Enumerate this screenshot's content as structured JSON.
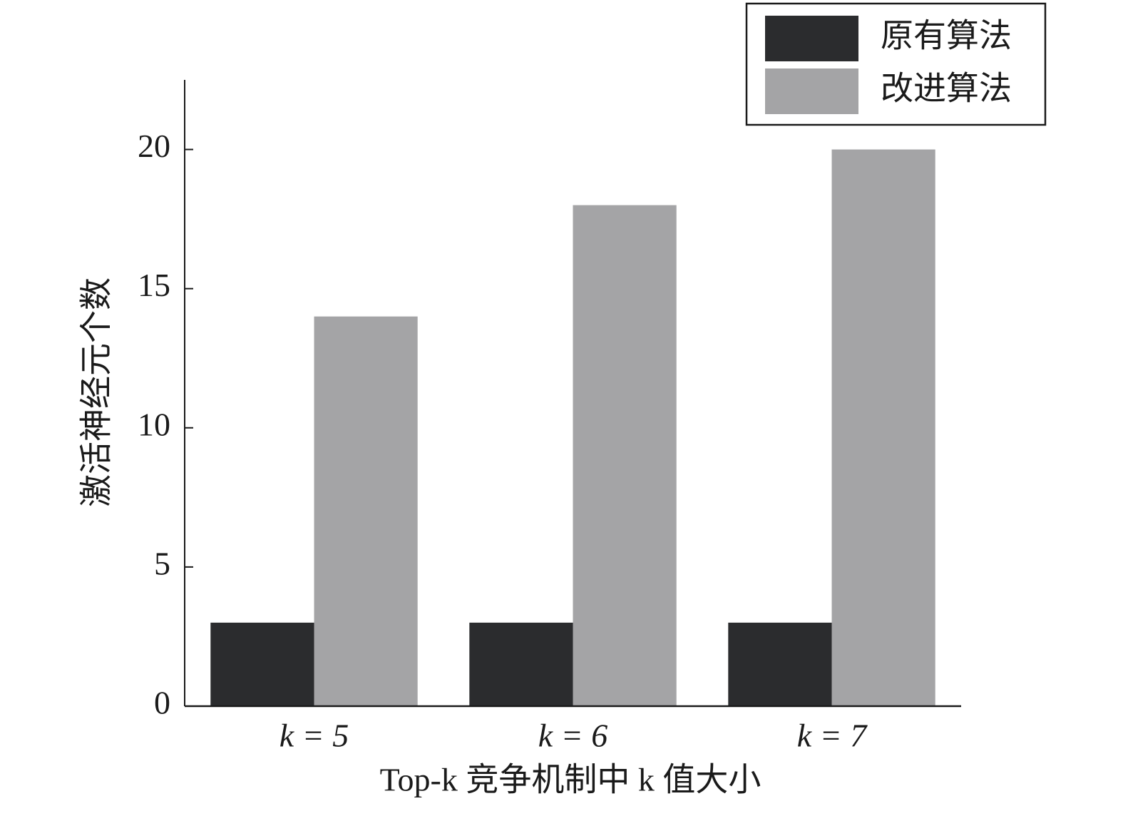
{
  "chart_data": {
    "type": "bar",
    "xlabel": "Top-k 竞争机制中 k 值大小",
    "ylabel": "激活神经元个数",
    "categories": [
      "k = 5",
      "k = 6",
      "k = 7"
    ],
    "series": [
      {
        "name": "原有算法",
        "color": "#2b2c2e",
        "values": [
          3,
          3,
          3
        ]
      },
      {
        "name": "改进算法",
        "color": "#a4a4a6",
        "values": [
          14,
          18,
          20
        ]
      }
    ],
    "ylim": [
      0,
      22.5
    ],
    "yticks": [
      0,
      5,
      10,
      15,
      20
    ],
    "grid": false,
    "legend": "upper right"
  }
}
